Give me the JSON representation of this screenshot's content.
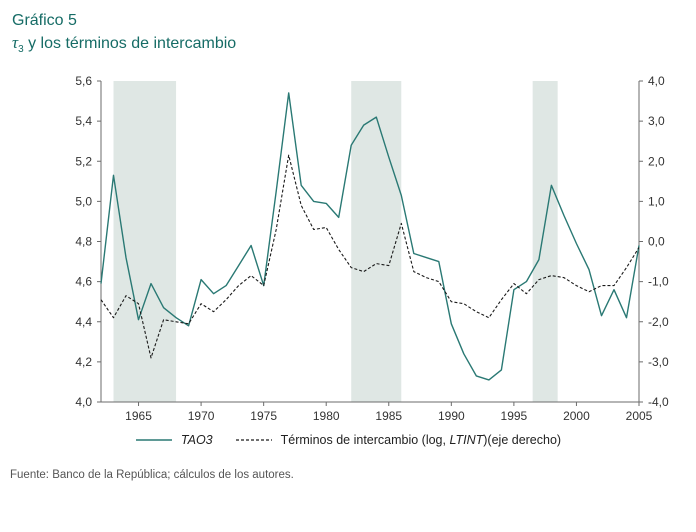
{
  "header": {
    "label": "Gráfico 5",
    "title_tau": "τ",
    "title_sub": "3",
    "title_rest": " y los términos de intercambio"
  },
  "colors": {
    "accent": "#166c66",
    "series1": "#2a7974",
    "series2": "#1a1a1a",
    "band": "#dfe7e4",
    "axis": "#6b6b6b",
    "tick_text": "#333333"
  },
  "chart_data": {
    "type": "line",
    "title": "Gráfico 5 — τ3 y los términos de intercambio",
    "x_range": [
      1962,
      2005
    ],
    "x_ticks": [
      1965,
      1970,
      1975,
      1980,
      1985,
      1990,
      1995,
      2000,
      2005
    ],
    "left_axis": {
      "min": 4.0,
      "max": 5.6,
      "tick_values": [
        4.0,
        4.2,
        4.4,
        4.6,
        4.8,
        5.0,
        5.2,
        5.4,
        5.6
      ],
      "tick_labels": [
        "4,0",
        "4,2",
        "4,4",
        "4,6",
        "4,8",
        "5,0",
        "5,2",
        "5,4",
        "5,6"
      ]
    },
    "right_axis": {
      "min": -4.0,
      "max": 4.0,
      "tick_values": [
        -4,
        -3,
        -2,
        -1,
        0,
        1,
        2,
        3,
        4
      ],
      "tick_labels": [
        "-4,0",
        "-3,0",
        "-2,0",
        "-1,0",
        "0,0",
        "1,0",
        "2,0",
        "3,0",
        "4,0"
      ]
    },
    "shaded_bands": [
      [
        1963,
        1968
      ],
      [
        1982,
        1986
      ],
      [
        1996.5,
        1998.5
      ]
    ],
    "x": [
      1962,
      1963,
      1964,
      1965,
      1966,
      1967,
      1968,
      1969,
      1970,
      1971,
      1972,
      1973,
      1974,
      1975,
      1976,
      1977,
      1978,
      1979,
      1980,
      1981,
      1982,
      1983,
      1984,
      1985,
      1986,
      1987,
      1988,
      1989,
      1990,
      1991,
      1992,
      1993,
      1994,
      1995,
      1996,
      1997,
      1998,
      1999,
      2000,
      2001,
      2002,
      2003,
      2004,
      2005
    ],
    "series": [
      {
        "name": "TAO3",
        "axis": "left",
        "style": "solid",
        "values": [
          4.59,
          5.13,
          4.72,
          4.41,
          4.59,
          4.47,
          4.42,
          4.38,
          4.61,
          4.54,
          4.58,
          4.68,
          4.78,
          4.58,
          5.05,
          5.54,
          5.08,
          5.0,
          4.99,
          4.92,
          5.28,
          5.38,
          5.42,
          5.22,
          5.03,
          4.74,
          4.72,
          4.7,
          4.39,
          4.24,
          4.13,
          4.11,
          4.16,
          4.56,
          4.6,
          4.71,
          5.08,
          4.93,
          4.79,
          4.66,
          4.43,
          4.56,
          4.42,
          4.78
        ]
      },
      {
        "name": "Términos de intercambio (log, LTINT)(eje derecho)",
        "axis": "right",
        "style": "dashed",
        "values": [
          -1.45,
          -1.9,
          -1.35,
          -1.55,
          -2.9,
          -1.95,
          -2.0,
          -2.05,
          -1.55,
          -1.75,
          -1.45,
          -1.1,
          -0.85,
          -1.1,
          0.3,
          2.15,
          0.9,
          0.3,
          0.35,
          -0.2,
          -0.65,
          -0.75,
          -0.55,
          -0.6,
          0.45,
          -0.75,
          -0.9,
          -1.0,
          -1.5,
          -1.55,
          -1.75,
          -1.9,
          -1.45,
          -1.05,
          -1.3,
          -0.95,
          -0.85,
          -0.9,
          -1.1,
          -1.25,
          -1.1,
          -1.1,
          -0.65,
          -0.15
        ]
      }
    ],
    "legend_position": "bottom",
    "grid": false
  },
  "legend": {
    "series1_label": "TAO3",
    "series2_prefix": "Términos de intercambio (log, ",
    "series2_italic": "LTINT",
    "series2_suffix": ")(eje derecho)"
  },
  "footer": {
    "source": "Fuente: Banco de la República; cálculos de los autores."
  }
}
